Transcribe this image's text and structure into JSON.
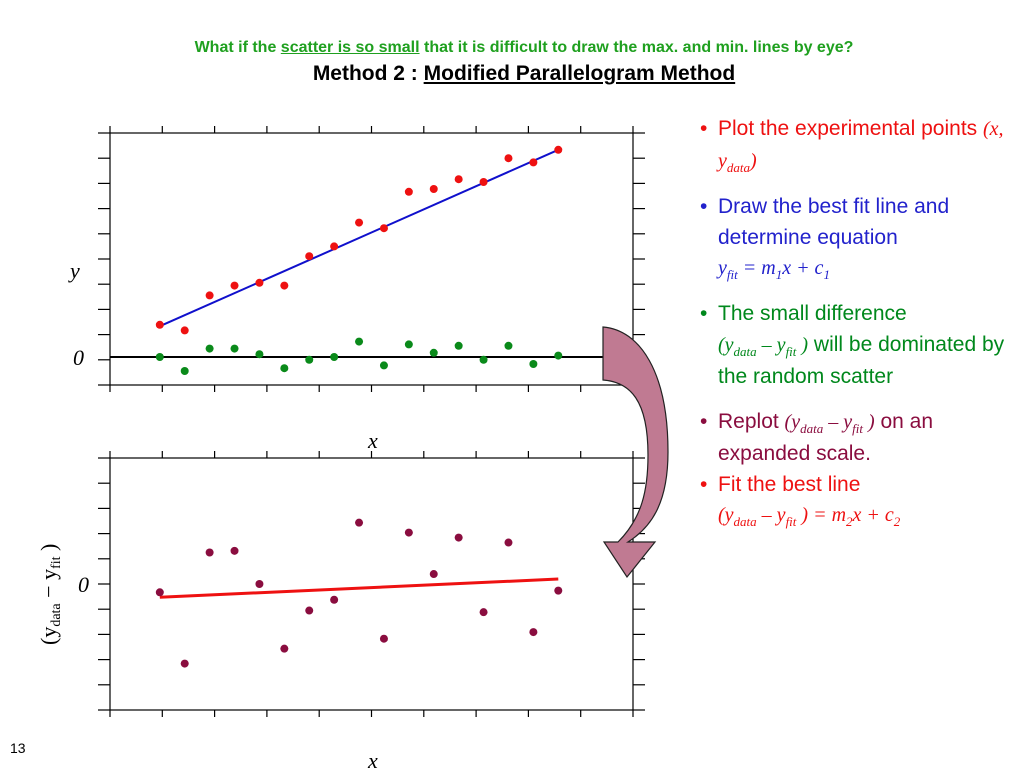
{
  "heading": {
    "subtitle_pre": "What if the ",
    "subtitle_underlined": "scatter is so small",
    "subtitle_post": " that it is difficult to draw the max. and min. lines by eye?",
    "title_pre": "Method 2 : ",
    "title_underlined": "Modified Parallelogram Method"
  },
  "top_plot": {
    "y_label": "y",
    "x_label": "x",
    "zero_label": "0"
  },
  "bottom_plot": {
    "y_label_main": "(y",
    "y_label_sub1": "data",
    "y_label_mid": " − y",
    "y_label_sub2": "fit",
    "y_label_end": " )",
    "x_label": "x",
    "zero_label": "0"
  },
  "bullets": {
    "b1_text": "Plot the experimental points ",
    "b1_math_a": "(x, y",
    "b1_math_sub": "data",
    "b1_math_b": ")",
    "b2_text": "Draw the best fit line and determine equation",
    "b2_math_y": "y",
    "b2_math_sub1": "fit",
    "b2_math_mid": " = m",
    "b2_math_sub2": "1",
    "b2_math_end": "x + c",
    "b2_math_sub3": "1",
    "b3_text_a": "The small difference",
    "b3_math_a": "(y",
    "b3_math_sub1": "data",
    "b3_math_mid": " – y",
    "b3_math_sub2": "fit",
    "b3_math_end": " )",
    "b3_text_b": " will be dominated by the random scatter",
    "b4_text_a": "Replot  ",
    "b4_math_a": "(y",
    "b4_math_sub1": "data",
    "b4_math_mid": " – y",
    "b4_math_sub2": "fit",
    "b4_math_end": " )",
    "b4_text_b": " on an expanded scale.",
    "b5_text": "Fit the best line",
    "b5_math_a": "(y",
    "b5_math_sub1": "data",
    "b5_math_mid": " – y",
    "b5_math_sub2": "fit",
    "b5_math_end": " ) = m",
    "b5_math_sub3": "2",
    "b5_math_end2": "x + c",
    "b5_math_sub4": "2"
  },
  "page_number": "13",
  "colors": {
    "subtitle": "#1fa01f",
    "data_points": "#ee1111",
    "fit_line": "#1010cc",
    "residual_points": "#0a8a1a",
    "replot_points": "#8a0d3f",
    "replot_fit": "#ee1111",
    "arrow_fill": "#c07a92",
    "b1": "#ee1111",
    "b2": "#2222cc",
    "b3": "#00881c",
    "b4": "#8a0d3f"
  },
  "chart_data": [
    {
      "type": "scatter",
      "x": [
        1,
        2,
        3,
        4,
        5,
        6,
        7,
        8,
        9,
        10,
        11,
        12,
        13,
        14,
        15,
        16,
        17
      ],
      "series": [
        {
          "values": [
            1.15,
            0.95,
            2.2,
            2.55,
            2.65,
            2.55,
            3.6,
            3.95,
            4.8,
            4.6,
            5.9,
            6.0,
            6.35,
            6.25,
            7.1,
            6.95,
            7.4
          ]
        },
        {
          "values": [
            0.0,
            -0.5,
            0.3,
            0.3,
            0.1,
            -0.4,
            -0.1,
            0.0,
            0.55,
            -0.3,
            0.45,
            0.15,
            0.4,
            -0.1,
            0.4,
            -0.25,
            0.05
          ]
        }
      ],
      "fit_lines": [
        {
          "x": [
            1,
            17
          ],
          "y": [
            1.1,
            7.4
          ]
        },
        {
          "x": [
            -1,
            20
          ],
          "y": [
            0.0,
            0.0
          ]
        }
      ],
      "xlim": [
        -1,
        20
      ],
      "ylim": [
        -1.0,
        8.0
      ],
      "grid": false
    },
    {
      "type": "scatter",
      "x": [
        1,
        2,
        3,
        4,
        5,
        6,
        7,
        8,
        9,
        10,
        11,
        12,
        13,
        14,
        15,
        16,
        17
      ],
      "series": [
        {
          "values": [
            -0.5,
            -4.8,
            1.9,
            2.0,
            0.0,
            -3.9,
            -1.6,
            -0.95,
            3.7,
            -3.3,
            3.1,
            0.6,
            2.8,
            -1.7,
            2.5,
            -2.9,
            -0.4
          ]
        }
      ],
      "fit_lines": [
        {
          "x": [
            1,
            17
          ],
          "y": [
            -0.8,
            0.3
          ]
        }
      ],
      "xlim": [
        -1,
        20
      ],
      "ylim": [
        -7.6,
        7.6
      ],
      "grid": false
    }
  ]
}
